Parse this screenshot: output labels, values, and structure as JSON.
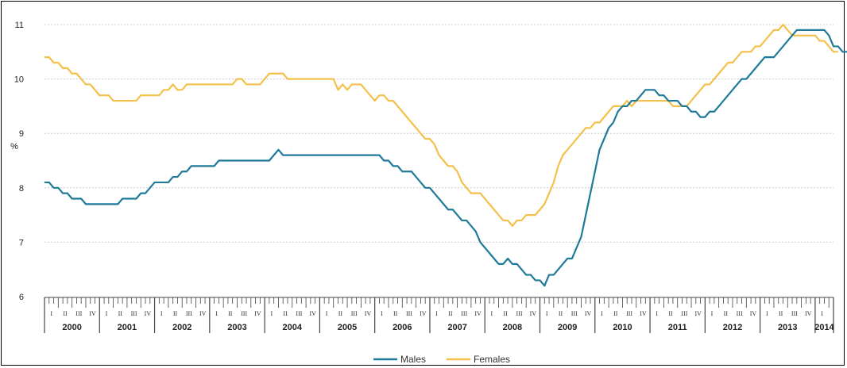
{
  "chart_data": {
    "type": "line",
    "ylabel": "%",
    "ylim": [
      6,
      11
    ],
    "yticks": [
      "6",
      "7",
      "8",
      "9",
      "10",
      "11"
    ],
    "years": [
      "2000",
      "2001",
      "2002",
      "2003",
      "2004",
      "2005",
      "2006",
      "2007",
      "2008",
      "2009",
      "2010",
      "2011",
      "2012",
      "2013",
      "2014"
    ],
    "quarter_marks": [
      "I",
      "II",
      "III",
      "IV"
    ],
    "grid": "horizontal dotted",
    "legend_position": "bottom-center",
    "x_start": "2000-01",
    "series": [
      {
        "name": "Males",
        "color": "#1f7a99",
        "values": [
          8.1,
          8.1,
          8.0,
          8.0,
          7.9,
          7.9,
          7.8,
          7.8,
          7.8,
          7.7,
          7.7,
          7.7,
          7.7,
          7.7,
          7.7,
          7.7,
          7.7,
          7.8,
          7.8,
          7.8,
          7.8,
          7.9,
          7.9,
          8.0,
          8.1,
          8.1,
          8.1,
          8.1,
          8.2,
          8.2,
          8.3,
          8.3,
          8.4,
          8.4,
          8.4,
          8.4,
          8.4,
          8.4,
          8.5,
          8.5,
          8.5,
          8.5,
          8.5,
          8.5,
          8.5,
          8.5,
          8.5,
          8.5,
          8.5,
          8.5,
          8.6,
          8.7,
          8.6,
          8.6,
          8.6,
          8.6,
          8.6,
          8.6,
          8.6,
          8.6,
          8.6,
          8.6,
          8.6,
          8.6,
          8.6,
          8.6,
          8.6,
          8.6,
          8.6,
          8.6,
          8.6,
          8.6,
          8.6,
          8.6,
          8.5,
          8.5,
          8.4,
          8.4,
          8.3,
          8.3,
          8.3,
          8.2,
          8.1,
          8.0,
          8.0,
          7.9,
          7.8,
          7.7,
          7.6,
          7.6,
          7.5,
          7.4,
          7.4,
          7.3,
          7.2,
          7.0,
          6.9,
          6.8,
          6.7,
          6.6,
          6.6,
          6.7,
          6.6,
          6.6,
          6.5,
          6.4,
          6.4,
          6.3,
          6.3,
          6.2,
          6.4,
          6.4,
          6.5,
          6.6,
          6.7,
          6.7,
          6.9,
          7.1,
          7.5,
          7.9,
          8.3,
          8.7,
          8.9,
          9.1,
          9.2,
          9.4,
          9.5,
          9.5,
          9.6,
          9.6,
          9.7,
          9.8,
          9.8,
          9.8,
          9.7,
          9.7,
          9.6,
          9.6,
          9.6,
          9.5,
          9.5,
          9.4,
          9.4,
          9.3,
          9.3,
          9.4,
          9.4,
          9.5,
          9.6,
          9.7,
          9.8,
          9.9,
          10.0,
          10.0,
          10.1,
          10.2,
          10.3,
          10.4,
          10.4,
          10.4,
          10.5,
          10.6,
          10.7,
          10.8,
          10.9,
          10.9,
          10.9,
          10.9,
          10.9,
          10.9,
          10.9,
          10.8,
          10.6,
          10.6,
          10.5,
          10.5,
          10.5,
          10.4,
          10.4
        ]
      },
      {
        "name": "Females",
        "color": "#f5c04a",
        "values": [
          10.4,
          10.4,
          10.3,
          10.3,
          10.2,
          10.2,
          10.1,
          10.1,
          10.0,
          9.9,
          9.9,
          9.8,
          9.7,
          9.7,
          9.7,
          9.6,
          9.6,
          9.6,
          9.6,
          9.6,
          9.6,
          9.7,
          9.7,
          9.7,
          9.7,
          9.7,
          9.8,
          9.8,
          9.9,
          9.8,
          9.8,
          9.9,
          9.9,
          9.9,
          9.9,
          9.9,
          9.9,
          9.9,
          9.9,
          9.9,
          9.9,
          9.9,
          10.0,
          10.0,
          9.9,
          9.9,
          9.9,
          9.9,
          10.0,
          10.1,
          10.1,
          10.1,
          10.1,
          10.0,
          10.0,
          10.0,
          10.0,
          10.0,
          10.0,
          10.0,
          10.0,
          10.0,
          10.0,
          10.0,
          9.8,
          9.9,
          9.8,
          9.9,
          9.9,
          9.9,
          9.8,
          9.7,
          9.6,
          9.7,
          9.7,
          9.6,
          9.6,
          9.5,
          9.4,
          9.3,
          9.2,
          9.1,
          9.0,
          8.9,
          8.9,
          8.8,
          8.6,
          8.5,
          8.4,
          8.4,
          8.3,
          8.1,
          8.0,
          7.9,
          7.9,
          7.9,
          7.8,
          7.7,
          7.6,
          7.5,
          7.4,
          7.4,
          7.3,
          7.4,
          7.4,
          7.5,
          7.5,
          7.5,
          7.6,
          7.7,
          7.9,
          8.1,
          8.4,
          8.6,
          8.7,
          8.8,
          8.9,
          9.0,
          9.1,
          9.1,
          9.2,
          9.2,
          9.3,
          9.4,
          9.5,
          9.5,
          9.5,
          9.6,
          9.5,
          9.6,
          9.6,
          9.6,
          9.6,
          9.6,
          9.6,
          9.6,
          9.6,
          9.5,
          9.5,
          9.5,
          9.5,
          9.6,
          9.7,
          9.8,
          9.9,
          9.9,
          10.0,
          10.1,
          10.2,
          10.3,
          10.3,
          10.4,
          10.5,
          10.5,
          10.5,
          10.6,
          10.6,
          10.7,
          10.8,
          10.9,
          10.9,
          11.0,
          10.9,
          10.8,
          10.8,
          10.8,
          10.8,
          10.8,
          10.8,
          10.7,
          10.7,
          10.6,
          10.5,
          10.5
        ]
      }
    ]
  }
}
